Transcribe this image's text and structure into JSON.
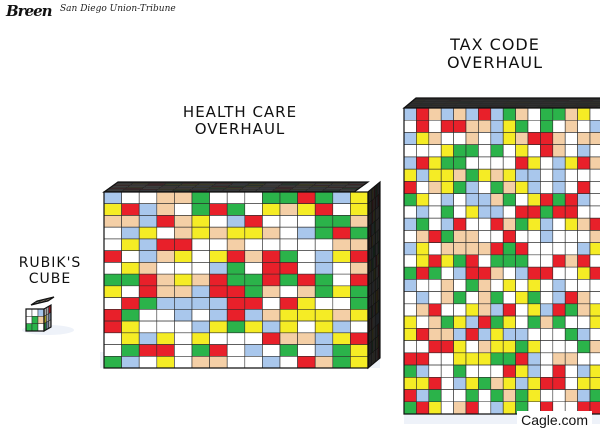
{
  "credits": {
    "signature": "Breen",
    "newspaper": "San Diego Union-Tribune",
    "watermark": "Cagle.com"
  },
  "captions": {
    "rubik": [
      "RUBIK'S",
      "CUBE"
    ],
    "health": [
      "HEALTH CARE",
      "OVERHAUL"
    ],
    "tax": [
      "TAX CODE",
      "OVERHAUL"
    ]
  },
  "palette": {
    "red": "#e8202a",
    "green": "#2bb34a",
    "blue": "#a9c7ec",
    "yellow": "#f5ec25",
    "tan": "#f4cfa6",
    "white": "#ffffff",
    "grid": "#2a2a2a",
    "shadow": "#eef2f9",
    "side": "#2a2a2a"
  },
  "cubes": [
    {
      "name": "rubiks-cube",
      "grid": 3
    },
    {
      "name": "health-care-cube",
      "grid": 15
    },
    {
      "name": "tax-code-cube",
      "grid": 25
    }
  ]
}
